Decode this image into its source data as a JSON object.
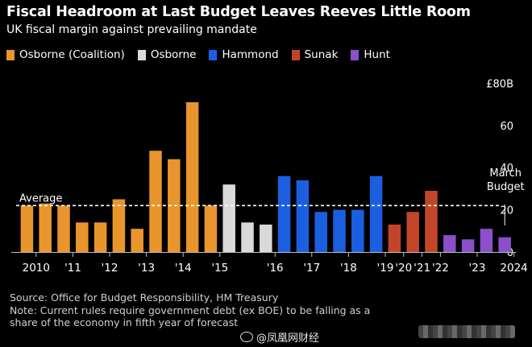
{
  "header": {
    "title": "Fiscal Headroom at Last Budget Leaves Reeves Little Room",
    "subtitle": "UK fiscal margin against prevailing mandate"
  },
  "legend": [
    {
      "label": "Osborne (Coalition)",
      "color": "#e8952e"
    },
    {
      "label": "Osborne",
      "color": "#d9d9d9"
    },
    {
      "label": "Hammond",
      "color": "#1b5fe0"
    },
    {
      "label": "Sunak",
      "color": "#c2452a"
    },
    {
      "label": "Hunt",
      "color": "#8a4fc9"
    }
  ],
  "chart_data": {
    "type": "bar",
    "title": "UK fiscal margin against prevailing mandate",
    "ylabel": "£80B",
    "ylim": [
      0,
      80
    ],
    "yticks": [
      "£80B",
      "60",
      "40",
      "20",
      "0"
    ],
    "ytick_values": [
      80,
      60,
      40,
      20,
      0
    ],
    "average": {
      "label": "Average",
      "value": 22
    },
    "annotation": {
      "text_line1": "March",
      "text_line2": "Budget"
    },
    "xtick_labels": [
      "2010",
      "'11",
      "'12",
      "'13",
      "'14",
      "'15",
      "'16",
      "'17",
      "'18",
      "'19",
      "'20",
      "'21",
      "'22",
      "'23",
      "2024"
    ],
    "xtick_positions": [
      1,
      3,
      5,
      7,
      9,
      11,
      14,
      16,
      18,
      20,
      21,
      22,
      23,
      25,
      27
    ],
    "series": [
      {
        "name": "Osborne (Coalition)",
        "color": "#e8952e",
        "values": [
          22,
          23,
          22,
          14,
          14,
          25,
          11,
          48,
          44,
          71,
          22
        ]
      },
      {
        "name": "Osborne",
        "color": "#d9d9d9",
        "values": [
          32,
          14,
          13
        ]
      },
      {
        "name": "Hammond",
        "color": "#1b5fe0",
        "values": [
          36,
          34,
          19,
          20,
          20,
          36
        ]
      },
      {
        "name": "Sunak",
        "color": "#c2452a",
        "values": [
          13,
          19,
          29
        ]
      },
      {
        "name": "Hunt",
        "color": "#8a4fc9",
        "values": [
          8,
          6,
          11,
          7
        ]
      }
    ]
  },
  "footer": {
    "source": "Source: Office for Budget Responsibility, HM Treasury",
    "note_line1": "Note: Current rules require government debt (ex BOE) to be falling as a",
    "note_line2": "share of the economy in fifth year of forecast"
  },
  "watermark": {
    "text": "@凤凰网财经"
  }
}
